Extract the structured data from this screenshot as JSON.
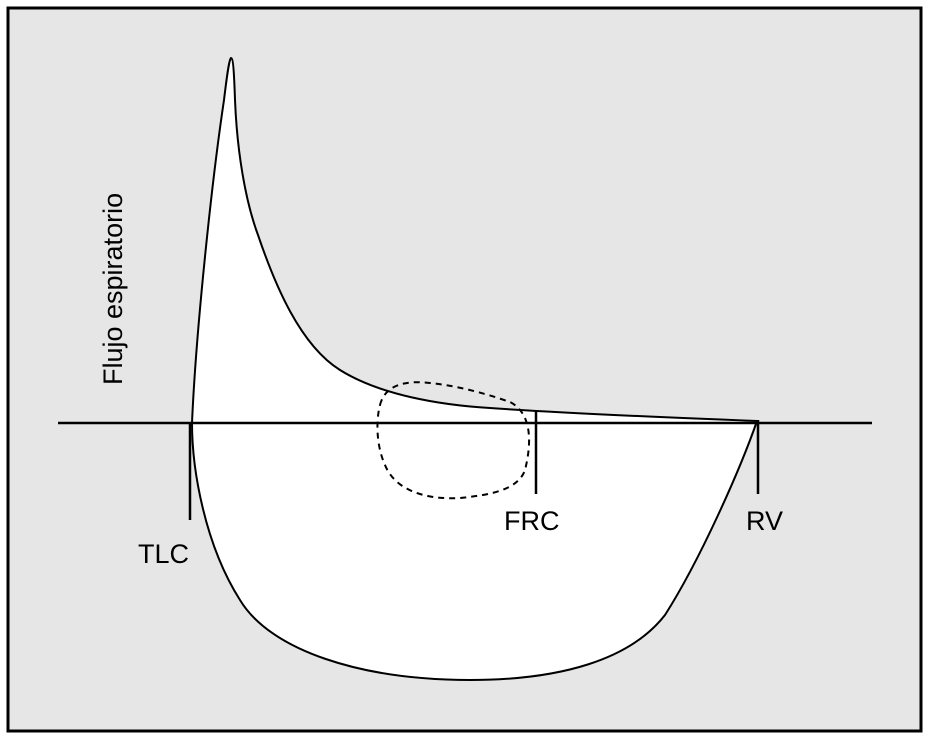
{
  "diagram": {
    "y_axis_label": "Flujo espiratorio",
    "markers": {
      "tlc": "TLC",
      "frc": "FRC",
      "rv": "RV"
    },
    "colors": {
      "background_panel": "#e6e6e6",
      "loop_fill": "#ffffff",
      "stroke": "#000000"
    }
  }
}
